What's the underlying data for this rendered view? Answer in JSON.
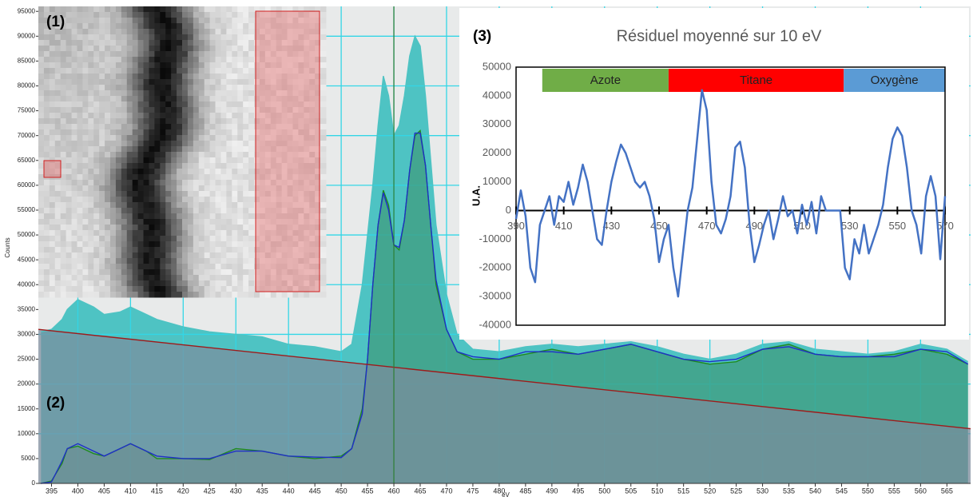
{
  "image_panel": {
    "label": "(1)"
  },
  "chart_data": [
    {
      "type": "spectrum",
      "panel_label": "(2)",
      "y_label": "Counts",
      "x_label": "eV",
      "xlim": [
        392.5,
        569.5
      ],
      "ylim": [
        0,
        96000
      ],
      "xticks": [
        395,
        400,
        405,
        410,
        415,
        420,
        425,
        430,
        435,
        440,
        445,
        450,
        455,
        460,
        465,
        470,
        475,
        480,
        485,
        490,
        495,
        500,
        505,
        510,
        515,
        520,
        525,
        530,
        535,
        540,
        545,
        550,
        555,
        560,
        565
      ],
      "yticks": [
        0,
        5000,
        10000,
        15000,
        20000,
        25000,
        30000,
        35000,
        40000,
        45000,
        50000,
        55000,
        60000,
        65000,
        70000,
        75000,
        80000,
        85000,
        90000,
        95000
      ],
      "grid": true,
      "grid_color": "#33d6e6",
      "cursor_x": 460,
      "cursor_color": "#2e7d32",
      "x": [
        393,
        395,
        397,
        398,
        400,
        403,
        405,
        408,
        410,
        413,
        415,
        420,
        425,
        430,
        435,
        440,
        445,
        450,
        452,
        454,
        455,
        456,
        457,
        458,
        459,
        460,
        461,
        462,
        463,
        464,
        465,
        466,
        467,
        468,
        470,
        472,
        475,
        480,
        485,
        490,
        495,
        500,
        505,
        510,
        515,
        520,
        525,
        530,
        535,
        540,
        545,
        550,
        555,
        560,
        565,
        569
      ],
      "series": [
        {
          "color": "#4ec3c3",
          "fill": "#4ec3c3",
          "values": [
            30500,
            31000,
            33000,
            35000,
            37000,
            35500,
            34000,
            34500,
            35500,
            34000,
            33000,
            31500,
            30500,
            30000,
            29500,
            28000,
            27500,
            26500,
            28000,
            40000,
            50000,
            60000,
            72000,
            82000,
            78000,
            70000,
            72000,
            78000,
            86000,
            90000,
            88000,
            78000,
            65000,
            52000,
            38000,
            30000,
            27000,
            26500,
            27500,
            28000,
            27500,
            28000,
            28500,
            27500,
            26000,
            25000,
            26000,
            28000,
            28500,
            27000,
            26500,
            26000,
            26500,
            28000,
            27000,
            24500
          ]
        },
        {
          "color": "#1f8a1f",
          "fill": "#3f9a7a",
          "values": [
            0,
            500,
            4000,
            7000,
            7500,
            6000,
            5500,
            7000,
            8000,
            6500,
            5000,
            5000,
            4800,
            7000,
            6500,
            5500,
            5000,
            5500,
            7000,
            15000,
            25000,
            40000,
            52000,
            59000,
            56000,
            48000,
            47000,
            53000,
            63000,
            70000,
            71000,
            64000,
            52000,
            40000,
            31000,
            26500,
            25000,
            25000,
            26000,
            27000,
            26000,
            27000,
            28000,
            26500,
            25000,
            24000,
            24500,
            27000,
            28000,
            26000,
            25500,
            25500,
            26000,
            27000,
            26000,
            24000
          ]
        },
        {
          "color": "#1f2fc8",
          "values": [
            0,
            300,
            4500,
            7000,
            8000,
            6500,
            5500,
            7000,
            8000,
            6500,
            5500,
            5000,
            5000,
            6500,
            6500,
            5500,
            5300,
            5200,
            7000,
            14000,
            25000,
            40000,
            52000,
            58500,
            55000,
            48000,
            47500,
            53000,
            63000,
            70500,
            70500,
            64000,
            52000,
            41000,
            31000,
            26500,
            25500,
            25000,
            26500,
            26500,
            26000,
            27000,
            28000,
            26500,
            25000,
            24500,
            25000,
            27000,
            27500,
            26000,
            25500,
            25500,
            25500,
            27000,
            26500,
            24000
          ]
        },
        {
          "color": "#9e1b1b",
          "fill": "#7d8b9c",
          "x": [
            392.5,
            569.5
          ],
          "values": [
            31000,
            11000
          ]
        }
      ]
    },
    {
      "type": "line",
      "panel_label": "(3)",
      "title": "Résiduel moyenné sur 10 eV",
      "y_label": "U.A.",
      "xlim": [
        390,
        570
      ],
      "ylim": [
        -40000,
        50000
      ],
      "xticks": [
        390,
        410,
        430,
        450,
        470,
        490,
        510,
        530,
        550,
        570
      ],
      "yticks": [
        -40000,
        -30000,
        -20000,
        -10000,
        0,
        10000,
        20000,
        30000,
        40000,
        50000
      ],
      "bands": [
        {
          "label": "Azote",
          "start": 401,
          "end": 454,
          "color": "#70ad47"
        },
        {
          "label": "Titane",
          "start": 454,
          "end": 527.5,
          "color": "#ff0000"
        },
        {
          "label": "Oxygène",
          "start": 527.5,
          "end": 570,
          "color": "#5b9bd5"
        }
      ],
      "x": [
        390,
        392,
        394,
        396,
        398,
        400,
        402,
        404,
        406,
        408,
        410,
        412,
        414,
        416,
        418,
        420,
        422,
        424,
        426,
        428,
        430,
        432,
        434,
        436,
        438,
        440,
        442,
        444,
        446,
        448,
        450,
        452,
        454,
        456,
        458,
        460,
        462,
        464,
        466,
        468,
        470,
        472,
        474,
        476,
        478,
        480,
        482,
        484,
        486,
        488,
        490,
        492,
        494,
        496,
        498,
        500,
        502,
        504,
        506,
        508,
        510,
        512,
        514,
        516,
        518,
        520,
        522,
        524,
        526,
        528,
        530,
        532,
        534,
        536,
        538,
        540,
        542,
        544,
        546,
        548,
        550,
        552,
        554,
        556,
        558,
        560,
        562,
        564,
        566,
        568,
        570
      ],
      "series": [
        {
          "color": "#4472c4",
          "values": [
            -3000,
            7000,
            -2000,
            -20000,
            -25000,
            -5000,
            0,
            5000,
            -5000,
            5000,
            3000,
            10000,
            2000,
            8000,
            16000,
            10000,
            0,
            -10000,
            -12000,
            0,
            10000,
            17000,
            23000,
            20000,
            15000,
            10000,
            8000,
            10000,
            5000,
            -3000,
            -18000,
            -10000,
            -5000,
            -20000,
            -30000,
            -15000,
            0,
            8000,
            25000,
            42000,
            35000,
            10000,
            -5000,
            -8000,
            -3000,
            5000,
            22000,
            24000,
            15000,
            -5000,
            -18000,
            -12000,
            -5000,
            0,
            -10000,
            -3000,
            5000,
            -2000,
            0,
            -8000,
            2000,
            -5000,
            3000,
            -8000,
            5000,
            0,
            0,
            0,
            0,
            -20000,
            -24000,
            -10000,
            -15000,
            -5000,
            -15000,
            -10000,
            -5000,
            2000,
            15000,
            25000,
            29000,
            26000,
            15000,
            0,
            -5000,
            -15000,
            5000,
            12000,
            5000,
            -17000,
            5000
          ]
        }
      ]
    }
  ]
}
